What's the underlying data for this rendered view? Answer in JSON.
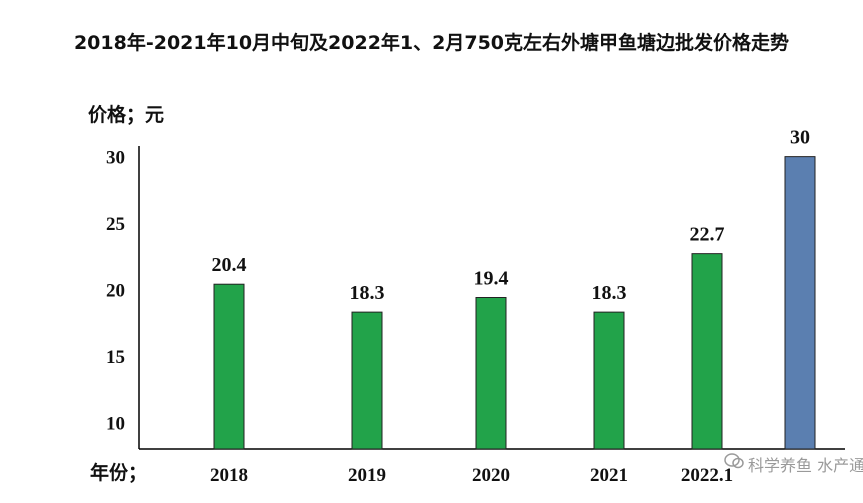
{
  "chart_data": {
    "type": "bar",
    "title": "2018年-2021年10月中旬及2022年1、2月750克左右外塘甲鱼塘边批发价格走势",
    "ylabel": "价格；元",
    "xlabel": "年份；",
    "categories": [
      "2018",
      "2019",
      "2020",
      "2021",
      "2022.1",
      ""
    ],
    "values": [
      20.4,
      18.3,
      19.4,
      18.3,
      22.7,
      30
    ],
    "value_labels": [
      "20.4",
      "18.3",
      "19.4",
      "18.3",
      "22.7",
      "30"
    ],
    "bar_colors": [
      "#22a34a",
      "#22a34a",
      "#22a34a",
      "#22a34a",
      "#22a34a",
      "#5b7fb0"
    ],
    "yticks": [
      "10",
      "15",
      "20",
      "25",
      "30"
    ],
    "ylim": [
      8,
      30.8
    ],
    "grid": false
  },
  "watermark": "科学养鱼 水产通"
}
